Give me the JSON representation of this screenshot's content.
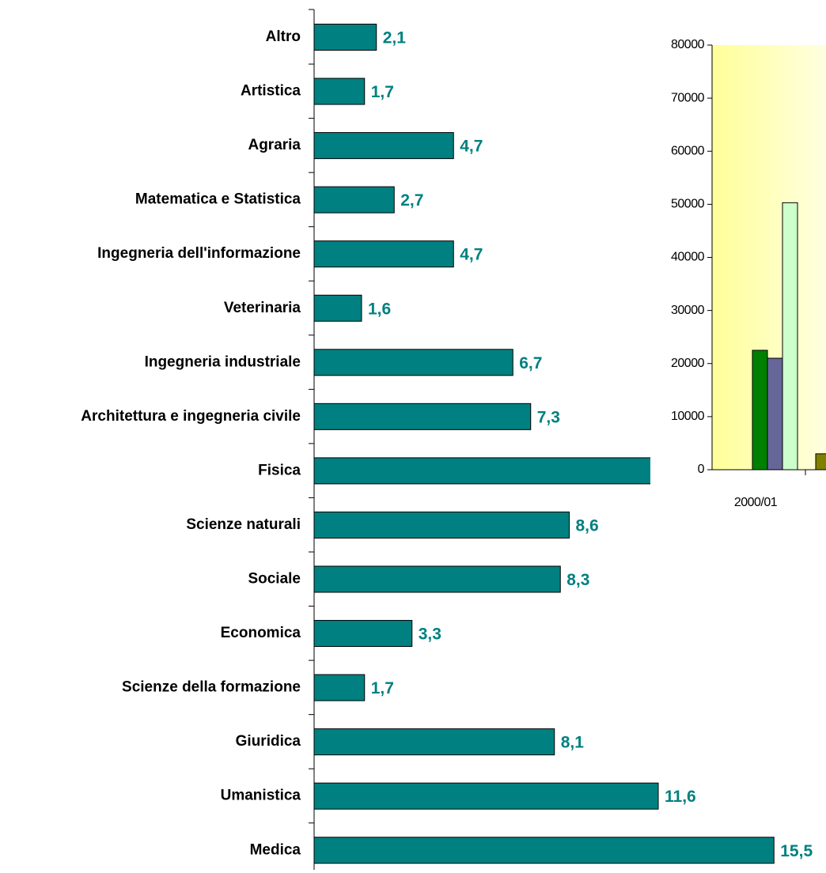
{
  "chart_data": [
    {
      "type": "barh",
      "categories": [
        "Altro",
        "Artistica",
        "Agraria",
        "Matematica e Statistica",
        "Ingegneria dell'informazione",
        "Veterinaria",
        "Ingegneria industriale",
        "Architettura e ingegneria civile",
        "Fisica",
        "Scienze naturali",
        "Sociale",
        "Economica",
        "Scienze della formazione",
        "Giuridica",
        "Umanistica",
        "Medica"
      ],
      "values": [
        2.1,
        1.7,
        4.7,
        2.7,
        4.7,
        1.6,
        6.7,
        7.3,
        11.4,
        8.6,
        8.3,
        3.3,
        1.7,
        8.1,
        11.6,
        15.5
      ],
      "value_labels": [
        "2,1",
        "1,7",
        "4,7",
        "2,7",
        "4,7",
        "1,6",
        "6,7",
        "7,3",
        null,
        "8,6",
        "8,3",
        "3,3",
        "1,7",
        "8,1",
        "11,6",
        "15,5"
      ],
      "color": "#008080",
      "label_color": "#008080",
      "xlim": [
        0,
        17
      ]
    },
    {
      "type": "bar",
      "categories": [
        "2000/01",
        null
      ],
      "series": [
        {
          "color": "#808000",
          "values": [
            0,
            3000
          ]
        },
        {
          "color": "#008000",
          "values": [
            22500,
            null
          ]
        },
        {
          "color": "#666699",
          "values": [
            21000,
            null
          ]
        },
        {
          "color": "#ccffcc",
          "values": [
            50300,
            null
          ]
        }
      ],
      "ylim": [
        0,
        80000
      ],
      "yticks": [
        0,
        10000,
        20000,
        30000,
        40000,
        50000,
        60000,
        70000,
        80000
      ]
    }
  ]
}
